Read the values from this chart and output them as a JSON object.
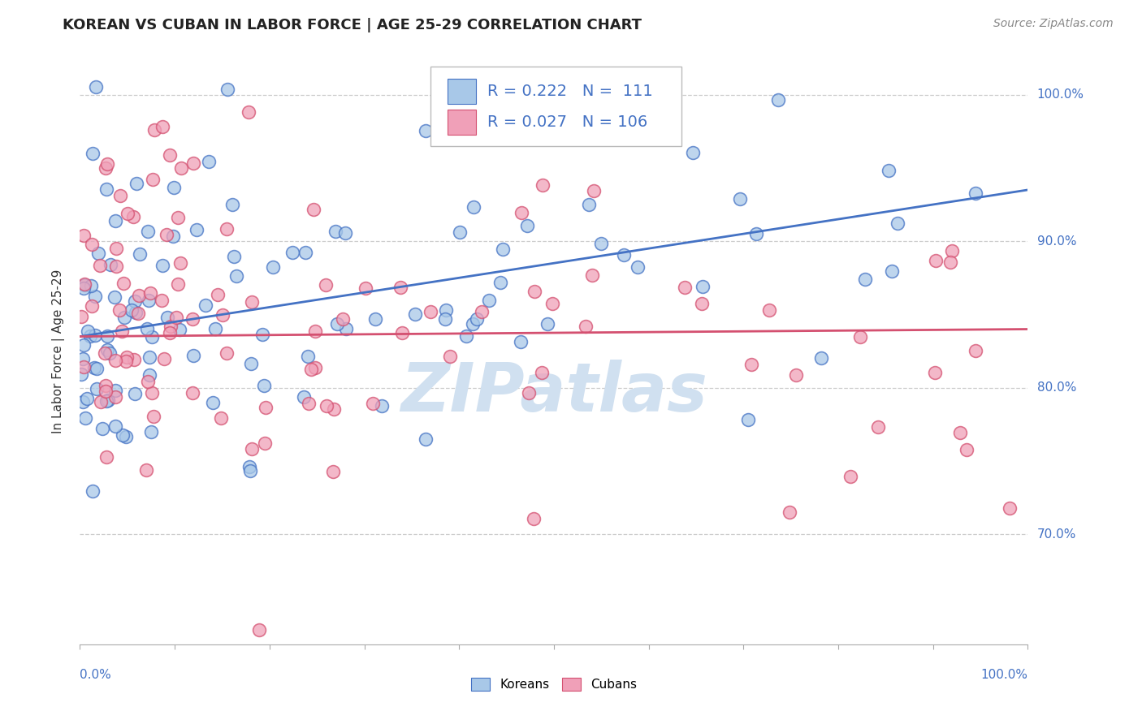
{
  "title": "KOREAN VS CUBAN IN LABOR FORCE | AGE 25-29 CORRELATION CHART",
  "source": "Source: ZipAtlas.com",
  "ylabel": "In Labor Force | Age 25-29",
  "xlim": [
    0.0,
    1.0
  ],
  "ylim": [
    0.625,
    1.025
  ],
  "legend_r_korean": "R = 0.222",
  "legend_n_korean": "N =  111",
  "legend_r_cuban": "R = 0.027",
  "legend_n_cuban": "N = 106",
  "korean_color": "#a8c8e8",
  "cuban_color": "#f0a0b8",
  "korean_line_color": "#4472c4",
  "cuban_line_color": "#d45070",
  "title_fontsize": 13,
  "source_fontsize": 10,
  "axis_label_fontsize": 11,
  "tick_fontsize": 11,
  "legend_fontsize": 14,
  "watermark_color": "#d0e0f0",
  "watermark_fontsize": 60,
  "yticks": [
    0.7,
    0.8,
    0.9,
    1.0
  ],
  "ytick_labels": [
    "70.0%",
    "80.0%",
    "90.0%",
    "100.0%"
  ],
  "korean_line_y0": 0.835,
  "korean_line_y1": 0.935,
  "cuban_line_y0": 0.835,
  "cuban_line_y1": 0.84,
  "scatter_size": 130,
  "scatter_alpha": 0.75,
  "scatter_linewidth": 1.2
}
